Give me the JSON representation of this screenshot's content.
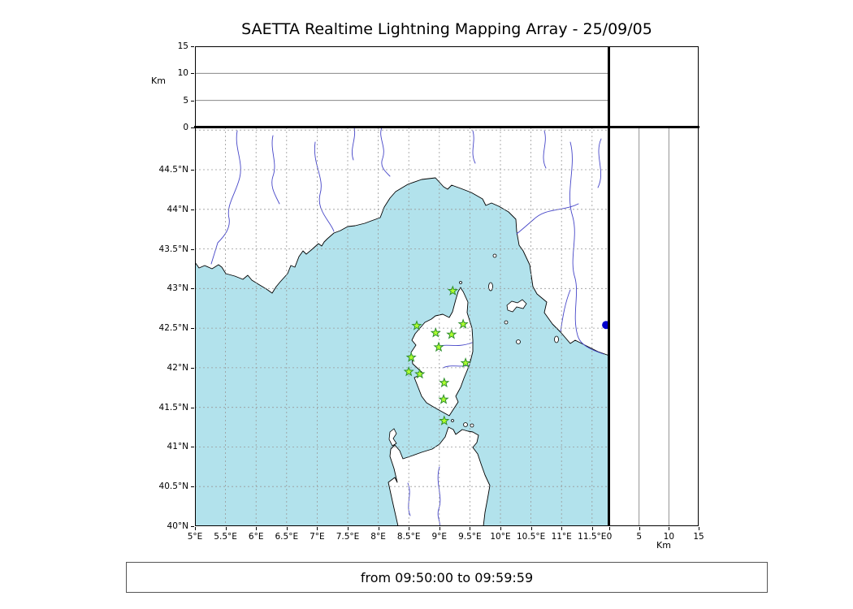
{
  "title": "SAETTA Realtime Lightning Mapping Array - 25/09/05",
  "footer_text": "from 09:50:00 to 09:59:59",
  "altitude_axis": {
    "label": "Km",
    "ticks": [
      0,
      5,
      10,
      15
    ],
    "max": 15
  },
  "map": {
    "x_tick_labels": [
      "5°E",
      "5.5°E",
      "6°E",
      "6.5°E",
      "7°E",
      "7.5°E",
      "8°E",
      "8.5°E",
      "9°E",
      "9.5°E",
      "10°E",
      "10.5°E",
      "11°E",
      "11.5°E"
    ],
    "y_tick_labels": [
      "44.5°N",
      "44°N",
      "43.5°N",
      "43°N",
      "42.5°N",
      "42°N",
      "41.5°N",
      "41°N",
      "40.5°N",
      "40°N"
    ],
    "lon_range": [
      5,
      11.78
    ],
    "lat_range": [
      40,
      45.03
    ],
    "colors": {
      "sea": "#b2e2ec",
      "land": "#ffffff",
      "coast": "#000000",
      "river": "#4646c8",
      "grid": "#999999",
      "station_fill": "#adff2f",
      "station_edge": "#2f8f2f",
      "event_dot": "#0000cd"
    },
    "stations": [
      {
        "lon": 9.22,
        "lat": 42.97
      },
      {
        "lon": 8.63,
        "lat": 42.53
      },
      {
        "lon": 8.94,
        "lat": 42.44
      },
      {
        "lon": 9.2,
        "lat": 42.42
      },
      {
        "lon": 9.39,
        "lat": 42.55
      },
      {
        "lon": 8.99,
        "lat": 42.26
      },
      {
        "lon": 8.54,
        "lat": 42.13
      },
      {
        "lon": 9.43,
        "lat": 42.06
      },
      {
        "lon": 8.5,
        "lat": 41.95
      },
      {
        "lon": 8.68,
        "lat": 41.92
      },
      {
        "lon": 9.08,
        "lat": 41.81
      },
      {
        "lon": 9.07,
        "lat": 41.6
      },
      {
        "lon": 9.08,
        "lat": 41.33
      }
    ],
    "event_dot": {
      "lon": 11.73,
      "lat": 42.54
    }
  }
}
